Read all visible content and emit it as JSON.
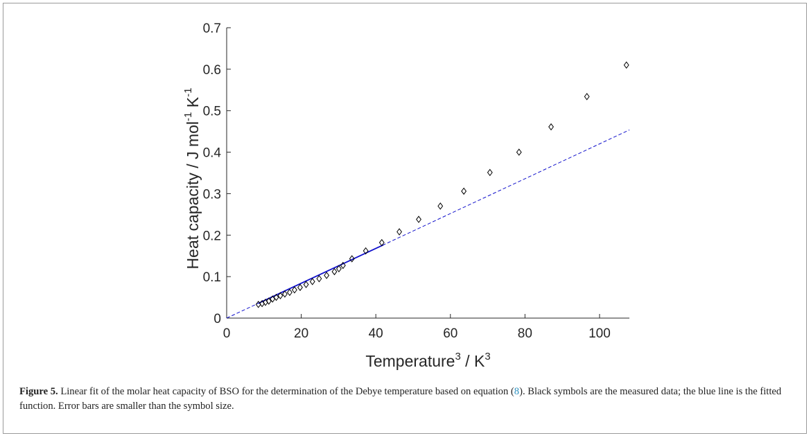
{
  "caption": {
    "label": "Figure 5.",
    "text_before_ref": " Linear fit of the molar heat capacity of BSO for the determination of the Debye temperature based on equation (",
    "ref": "8",
    "text_after_ref": "). Black symbols are the measured data; the blue line is the fitted function. Error bars are smaller than the symbol size."
  },
  "chart_data": {
    "type": "scatter",
    "xlabel": {
      "base": "Temperature",
      "sup": "3",
      "mid": " / K",
      "sup2": "3"
    },
    "ylabel": {
      "base": "Heat capacity / J mol",
      "sup": "-1",
      "mid": " K",
      "sup2": "-1"
    },
    "xlim": [
      0,
      108
    ],
    "ylim": [
      0,
      0.7
    ],
    "xticks": [
      0,
      20,
      40,
      60,
      80,
      100
    ],
    "yticks": [
      0,
      0.1,
      0.2,
      0.3,
      0.4,
      0.5,
      0.6,
      0.7
    ],
    "ytick_labels": [
      "0",
      "0.1",
      "0.2",
      "0.3",
      "0.4",
      "0.5",
      "0.6",
      "0.7"
    ],
    "grid": false,
    "series": [
      {
        "kind": "markers",
        "marker": "diamond",
        "color": "#000000",
        "x": [
          8.5,
          9.5,
          10.4,
          11.3,
          12.3,
          13.3,
          14.4,
          15.6,
          16.9,
          18.2,
          19.7,
          21.3,
          23.0,
          24.8,
          26.8,
          28.9,
          30.1,
          31.2,
          33.6,
          37.3,
          41.6,
          46.3,
          51.5,
          57.3,
          63.6,
          70.6,
          78.4,
          87.0,
          96.6,
          107.2
        ],
        "y": [
          0.033,
          0.035,
          0.038,
          0.041,
          0.046,
          0.05,
          0.054,
          0.058,
          0.062,
          0.068,
          0.074,
          0.081,
          0.088,
          0.095,
          0.103,
          0.112,
          0.119,
          0.127,
          0.143,
          0.162,
          0.182,
          0.208,
          0.238,
          0.27,
          0.306,
          0.351,
          0.4,
          0.461,
          0.534,
          0.61
        ]
      },
      {
        "kind": "line",
        "style": "solid",
        "color": "#1111cc",
        "x": [
          8.5,
          42
        ],
        "y": [
          0.0357,
          0.1764
        ]
      },
      {
        "kind": "line",
        "style": "dashed",
        "color": "#1111cc",
        "x": [
          0,
          108
        ],
        "y": [
          0,
          0.4536
        ]
      }
    ]
  }
}
